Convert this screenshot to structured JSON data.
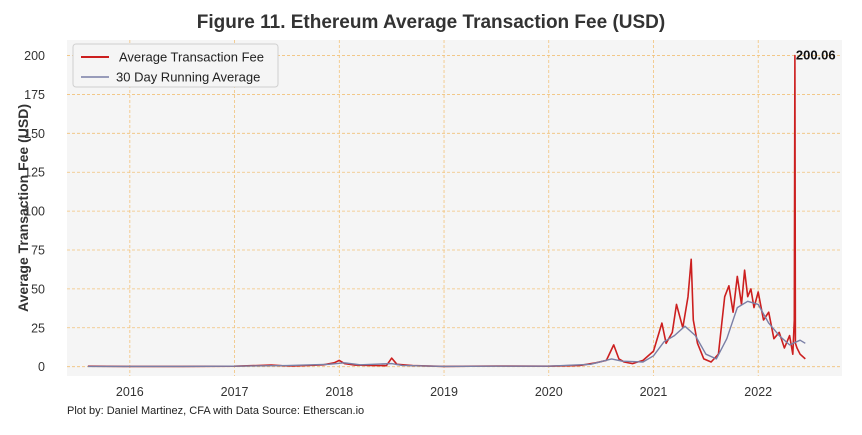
{
  "chart_data": {
    "type": "line",
    "title": "Figure 11. Ethereum Average Transaction Fee (USD)",
    "xlabel": "",
    "ylabel": "Average Transaction Fee (USD)",
    "xlim": [
      2015.4,
      2022.8
    ],
    "ylim": [
      -6,
      210
    ],
    "x_tick_labels": [
      "2016",
      "2017",
      "2018",
      "2019",
      "2020",
      "2021",
      "2022"
    ],
    "y_tick_labels": [
      "0",
      "25",
      "50",
      "75",
      "100",
      "125",
      "150",
      "175",
      "200"
    ],
    "grid": true,
    "legend_position": "top-left",
    "colors": {
      "fee": "#cc1f1f",
      "avg": "#7a7fa6",
      "grid": "#f2c27a",
      "plot_bg": "#f5f5f5"
    },
    "annotation": {
      "label": "200.06",
      "x": 2022.35,
      "y": 200.06
    },
    "series": [
      {
        "name": "Average Transaction Fee",
        "x": [
          2015.6,
          2016.0,
          2016.5,
          2017.0,
          2017.35,
          2017.45,
          2017.55,
          2017.7,
          2017.85,
          2017.95,
          2018.0,
          2018.05,
          2018.15,
          2018.3,
          2018.45,
          2018.5,
          2018.55,
          2018.7,
          2019.0,
          2019.5,
          2020.0,
          2020.3,
          2020.45,
          2020.55,
          2020.62,
          2020.67,
          2020.72,
          2020.8,
          2020.9,
          2021.0,
          2021.08,
          2021.12,
          2021.18,
          2021.22,
          2021.28,
          2021.33,
          2021.36,
          2021.38,
          2021.42,
          2021.48,
          2021.55,
          2021.62,
          2021.68,
          2021.72,
          2021.76,
          2021.8,
          2021.84,
          2021.87,
          2021.9,
          2021.93,
          2021.96,
          2022.0,
          2022.05,
          2022.1,
          2022.15,
          2022.2,
          2022.25,
          2022.3,
          2022.33,
          2022.345,
          2022.35,
          2022.355,
          2022.37,
          2022.4,
          2022.45
        ],
        "values": [
          0.3,
          0.2,
          0.2,
          0.3,
          1.0,
          0.6,
          0.5,
          0.8,
          1.2,
          2.5,
          4.0,
          2.0,
          1.0,
          0.8,
          0.6,
          5.5,
          1.5,
          0.7,
          0.2,
          0.4,
          0.3,
          0.8,
          2.5,
          4.0,
          14.0,
          5.0,
          3.0,
          2.0,
          4.0,
          10.0,
          28.0,
          15.0,
          22.0,
          40.0,
          25.0,
          45.0,
          69.0,
          30.0,
          15.0,
          5.0,
          3.0,
          8.0,
          45.0,
          52.0,
          35.0,
          58.0,
          40.0,
          62.0,
          45.0,
          50.0,
          38.0,
          48.0,
          30.0,
          35.0,
          18.0,
          22.0,
          12.0,
          20.0,
          8.0,
          30.0,
          200.06,
          15.0,
          12.0,
          8.0,
          5.0
        ]
      },
      {
        "name": "30 Day Running Average",
        "x": [
          2015.6,
          2016.0,
          2016.5,
          2017.0,
          2017.5,
          2017.9,
          2018.05,
          2018.2,
          2018.5,
          2018.6,
          2019.0,
          2019.5,
          2020.0,
          2020.4,
          2020.6,
          2020.7,
          2020.9,
          2021.0,
          2021.1,
          2021.2,
          2021.3,
          2021.4,
          2021.5,
          2021.6,
          2021.7,
          2021.8,
          2021.9,
          2022.0,
          2022.1,
          2022.2,
          2022.3,
          2022.4,
          2022.45
        ],
        "values": [
          0.2,
          0.2,
          0.2,
          0.3,
          0.7,
          1.5,
          2.5,
          1.2,
          2.0,
          0.8,
          0.2,
          0.3,
          0.3,
          1.5,
          5.0,
          3.5,
          3.0,
          7.0,
          16.0,
          20.0,
          26.0,
          20.0,
          8.0,
          5.0,
          18.0,
          38.0,
          42.0,
          40.0,
          28.0,
          20.0,
          14.0,
          17.0,
          15.0
        ]
      }
    ]
  },
  "footnote": "Plot by: Daniel Martinez, CFA with Data Source: Etherscan.io"
}
